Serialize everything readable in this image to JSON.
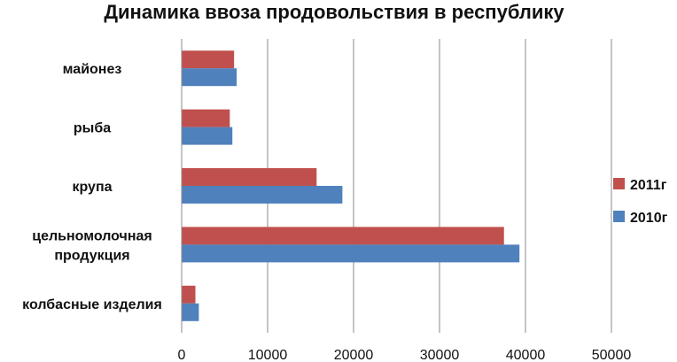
{
  "chart_data": {
    "type": "bar",
    "orientation": "horizontal",
    "title": "Динамика ввоза продовольствия в республику",
    "categories": [
      "майонез",
      "рыба",
      "крупа",
      "цельномолочная продукция",
      "колбасные изделия"
    ],
    "category_lines": [
      [
        "майонез"
      ],
      [
        "рыба"
      ],
      [
        "крупа"
      ],
      [
        "цельномолочная",
        "продукция"
      ],
      [
        "колбасные изделия"
      ]
    ],
    "series": [
      {
        "name": "2011г",
        "color": "#c0504d",
        "values": [
          6100,
          5600,
          15700,
          37500,
          1600
        ]
      },
      {
        "name": "2010г",
        "color": "#4f81bd",
        "values": [
          6400,
          5900,
          18700,
          39300,
          2000
        ]
      }
    ],
    "xlim": [
      0,
      50000
    ],
    "x_ticks": [
      "0",
      "10000",
      "20000",
      "30000",
      "40000",
      "50000"
    ],
    "x_tick_values": [
      0,
      10000,
      20000,
      30000,
      40000,
      50000
    ],
    "grid": true,
    "legend_position": "right"
  }
}
